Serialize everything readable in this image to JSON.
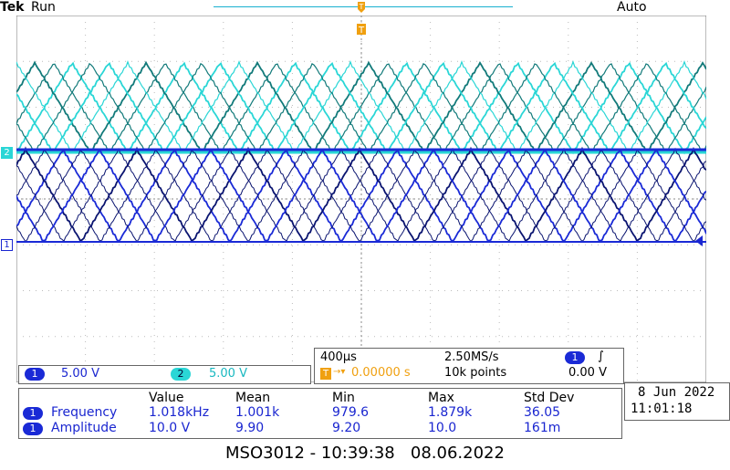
{
  "header": {
    "brand": "Tek",
    "run_state": "Run",
    "trigger_mode": "Auto"
  },
  "trigger": {
    "marker": "T"
  },
  "channels": [
    {
      "id": "1",
      "scale": "5.00 V",
      "color": "#1a2ad6"
    },
    {
      "id": "2",
      "scale": "5.00 V",
      "color": "#2ad6d6"
    }
  ],
  "acquisition": {
    "timebase": "400µs",
    "sample_rate": "2.50MS/s",
    "trigger_offset": "0.00000 s",
    "record_length": "10k points",
    "trigger_source": "1",
    "trigger_level": "0.00 V",
    "slope_symbol": "∫"
  },
  "measurements": {
    "headers": [
      "Value",
      "Mean",
      "Min",
      "Max",
      "Std Dev"
    ],
    "rows": [
      {
        "ch": "1",
        "name": "Frequency",
        "value": "1.018kHz",
        "mean": "1.001k",
        "min": "979.6",
        "max": "1.879k",
        "std": "36.05"
      },
      {
        "ch": "1",
        "name": "Amplitude",
        "value": "10.0 V",
        "mean": "9.90",
        "min": "9.20",
        "max": "10.0",
        "std": "161m"
      }
    ]
  },
  "datetime": {
    "date": "8 Jun 2022",
    "time": "11:01:18"
  },
  "footer": {
    "caption": "MSO3012 - 10:39:38   08.06.2022"
  },
  "colors": {
    "ch1": "#1a2ad6",
    "ch1_dark": "#0a1470",
    "ch2": "#2ad6d6",
    "ch2_dark": "#127a7a",
    "trigger": "#f0a010"
  }
}
